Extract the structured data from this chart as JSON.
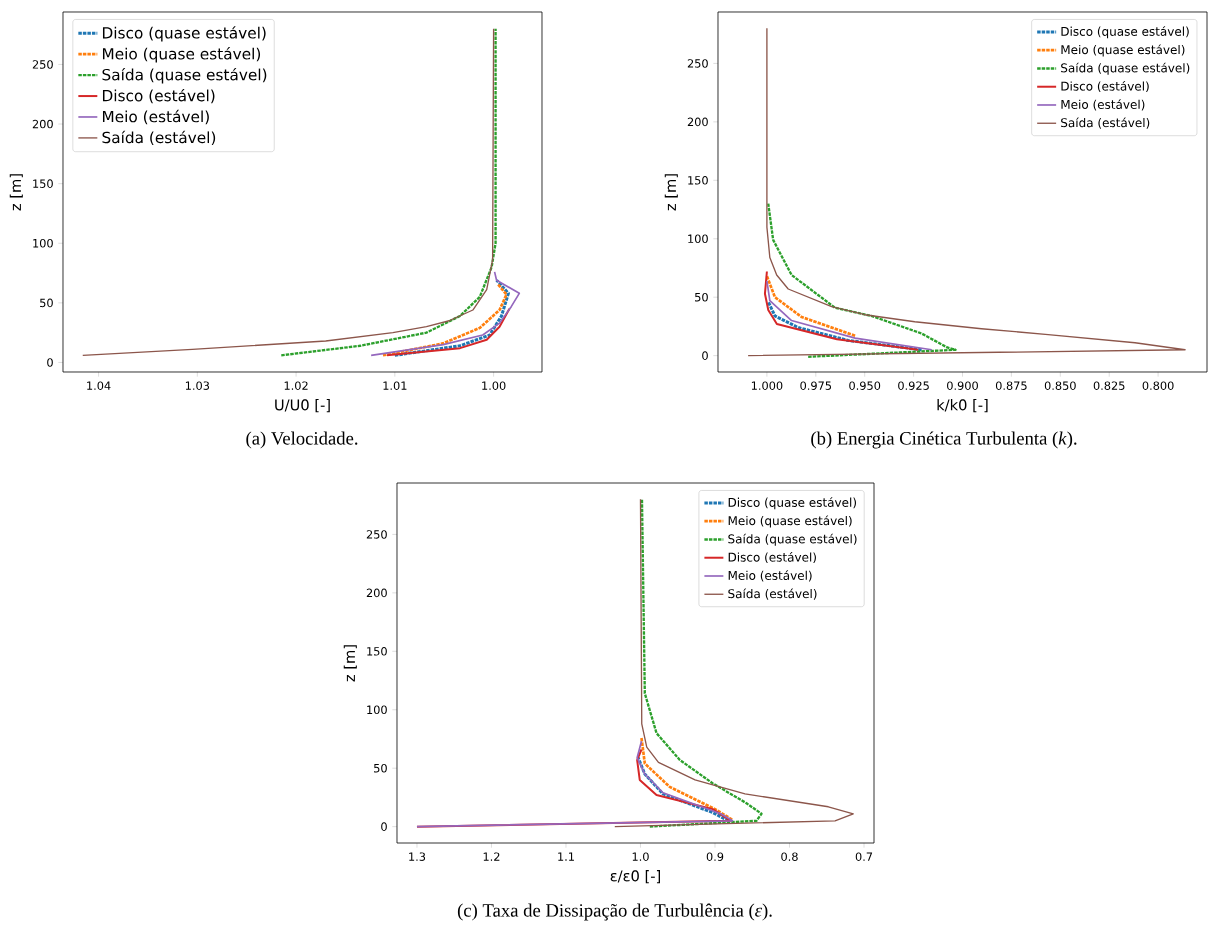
{
  "chart_data": [
    {
      "type": "line",
      "xlabel": "U/U0 [-]",
      "ylabel": "z [m]",
      "annotations": [
        "(a) Velocidade."
      ],
      "xlim": [
        1.0436,
        0.9951
      ],
      "ylim": [
        -8,
        294
      ],
      "xticks": [
        1.04,
        1.03,
        1.02,
        1.01,
        {
          "value": 1.0,
          "label": "1.00"
        }
      ],
      "yticks": [
        0,
        50,
        100,
        150,
        200,
        250
      ],
      "legend": "top left",
      "marker": "none",
      "series": [
        {
          "name": "Disco (quase estável)",
          "color": "#1f77b4",
          "line_style": "dashed",
          "x": [
            1.01,
            1.0034,
            1.0004,
            0.9992,
            0.9985,
            0.9997
          ],
          "values": [
            6,
            14,
            23,
            39,
            58,
            69
          ]
        },
        {
          "name": "Meio (quase estável)",
          "color": "#ff7f0e",
          "line_style": "dashed",
          "x": [
            1.0112,
            1.0051,
            1.0014,
            0.9994,
            0.9987,
            0.9996
          ],
          "values": [
            6,
            16,
            29,
            44,
            57,
            66
          ]
        },
        {
          "name": "Saída (quase estável)",
          "color": "#2ca02c",
          "line_style": "dashed",
          "x": [
            1.0215,
            1.0135,
            1.0068,
            1.0034,
            1.0014,
            1.0002,
            0.9998,
            0.9998
          ],
          "values": [
            6,
            14,
            25,
            39,
            55,
            80,
            100,
            280
          ]
        },
        {
          "name": "Disco (estável)",
          "color": "#d62728",
          "line_style": "solid",
          "x": [
            1.0108,
            1.0034,
            1.0007,
            0.9994,
            0.9984
          ],
          "values": [
            6,
            12,
            19,
            30,
            45
          ]
        },
        {
          "name": "Meio (estável)",
          "color": "#9467bd",
          "line_style": "solid",
          "x": [
            1.0124,
            1.0051,
            1.0011,
            0.9994,
            0.9982,
            0.9974,
            0.9997,
            0.9999
          ],
          "values": [
            6,
            15,
            23,
            33,
            47,
            58,
            69,
            76
          ]
        },
        {
          "name": "Saída (estável)",
          "color": "#8c564b",
          "line_style": "solid",
          "x": [
            1.0416,
            1.0305,
            1.017,
            1.0102,
            1.0068,
            1.0045,
            1.0021,
            1.0007,
            1.0001,
            1.0
          ],
          "values": [
            6,
            11,
            18,
            25,
            30,
            35,
            44,
            61,
            86,
            280
          ]
        }
      ]
    },
    {
      "type": "line",
      "xlabel": "k/k0 [-]",
      "ylabel": "z [m]",
      "annotations": [
        "(b) Energia Cinética Turbulenta (*k*)."
      ],
      "xlim": [
        1.025,
        0.775
      ],
      "ylim": [
        -14,
        294
      ],
      "xticks": [
        {
          "value": 1.0,
          "label": "1.000"
        },
        0.975,
        {
          "value": 0.95,
          "label": "0.950"
        },
        0.925,
        {
          "value": 0.9,
          "label": "0.900"
        },
        0.875,
        {
          "value": 0.85,
          "label": "0.850"
        },
        0.825,
        {
          "value": 0.8,
          "label": "0.800"
        }
      ],
      "yticks": [
        0,
        50,
        100,
        150,
        200,
        250
      ],
      "legend": "top right",
      "marker": "none",
      "series": [
        {
          "name": "Disco (quase estável)",
          "color": "#1f77b4",
          "line_style": "dashed",
          "x": [
            0.9209,
            0.9584,
            0.984,
            0.9959,
            0.9993
          ],
          "values": [
            5,
            13,
            24,
            34,
            46
          ]
        },
        {
          "name": "Meio (quase estável)",
          "color": "#ff7f0e",
          "line_style": "dashed",
          "x": [
            0.9549,
            0.9822,
            0.9959,
            1.0
          ],
          "values": [
            17,
            33,
            50,
            68
          ]
        },
        {
          "name": "Saída (quase estável)",
          "color": "#2ca02c",
          "line_style": "dashed",
          "x": [
            0.9789,
            0.9035,
            0.9078,
            0.921,
            0.9466,
            0.9652,
            0.9874,
            0.9968,
            0.9993
          ],
          "values": [
            -1,
            5,
            7,
            19,
            34,
            41,
            69,
            99,
            130
          ]
        },
        {
          "name": "Disco (estável)",
          "color": "#d62728",
          "line_style": "solid",
          "x": [
            0.9226,
            0.9642,
            0.9949,
            0.9993,
            1.001,
            1.0
          ],
          "values": [
            5,
            14,
            27,
            39,
            53,
            72
          ]
        },
        {
          "name": "Meio (estável)",
          "color": "#9467bd",
          "line_style": "solid",
          "x": [
            0.9157,
            0.9549,
            0.9874,
            0.9985,
            1.0
          ],
          "values": [
            5,
            15,
            30,
            47,
            64
          ]
        },
        {
          "name": "Saída (estável)",
          "color": "#8c564b",
          "line_style": "solid",
          "x": [
            1.0096,
            0.7862,
            0.8118,
            0.8562,
            0.8903,
            0.9244,
            0.9499,
            0.9669,
            0.9891,
            0.995,
            0.9985,
            1.0,
            1.0
          ],
          "values": [
            0,
            5,
            11,
            18,
            23,
            29,
            35,
            42,
            57,
            69,
            84,
            110,
            280
          ]
        }
      ]
    },
    {
      "type": "line",
      "xlabel": "ε/ε0 [-]",
      "ylabel": "z [m]",
      "annotations": [
        "(c) Taxa de Dissipação de Turbulência (*ε*)."
      ],
      "xlim": [
        1.3268,
        0.6866
      ],
      "ylim": [
        -14,
        294
      ],
      "xticks": [
        1.3,
        1.2,
        1.1,
        {
          "value": 1.0,
          "label": "1.0"
        },
        0.9,
        0.8,
        0.7
      ],
      "yticks": [
        0,
        50,
        100,
        150,
        200,
        250
      ],
      "legend": "top right",
      "marker": "none",
      "series": [
        {
          "name": "Disco (quase estável)",
          "color": "#1f77b4",
          "line_style": "dashed",
          "x": [
            0.882,
            0.9029,
            0.9698,
            0.9942,
            1.0031
          ],
          "values": [
            5,
            12,
            28,
            45,
            59
          ]
        },
        {
          "name": "Meio (quase estável)",
          "color": "#ff7f0e",
          "line_style": "dashed",
          "x": [
            0.877,
            0.9,
            0.9608,
            0.9942,
            0.9987
          ],
          "values": [
            6,
            15,
            34,
            54,
            76
          ]
        },
        {
          "name": "Saída (quase estável)",
          "color": "#2ca02c",
          "line_style": "dashed",
          "x": [
            0.9875,
            0.8443,
            0.8376,
            0.8577,
            0.9029,
            0.9472,
            0.9785,
            0.9942,
            0.998
          ],
          "values": [
            0,
            5,
            11,
            20,
            37,
            57,
            80,
            114,
            280
          ]
        },
        {
          "name": "Disco (estável)",
          "color": "#d62728",
          "line_style": "solid",
          "x": [
            1.3,
            0.8795,
            0.9029,
            0.9785,
            1.001,
            1.0045,
            0.9987
          ],
          "values": [
            0,
            5,
            15,
            27,
            40,
            57,
            66
          ]
        },
        {
          "name": "Meio (estável)",
          "color": "#9467bd",
          "line_style": "solid",
          "x": [
            1.3,
            0.8765,
            0.8922,
            0.9698,
            0.9942,
            1.0045,
            0.9987
          ],
          "values": [
            0,
            5,
            11,
            29,
            45,
            59,
            73
          ]
        },
        {
          "name": "Saída (estável)",
          "color": "#8c564b",
          "line_style": "solid",
          "x": [
            1.0345,
            0.7389,
            0.7144,
            0.7479,
            0.8597,
            0.9268,
            0.9759,
            0.9916,
            0.9983,
            1.0
          ],
          "values": [
            0,
            5,
            11,
            17,
            28,
            40,
            55,
            68,
            88,
            280
          ]
        }
      ]
    }
  ]
}
